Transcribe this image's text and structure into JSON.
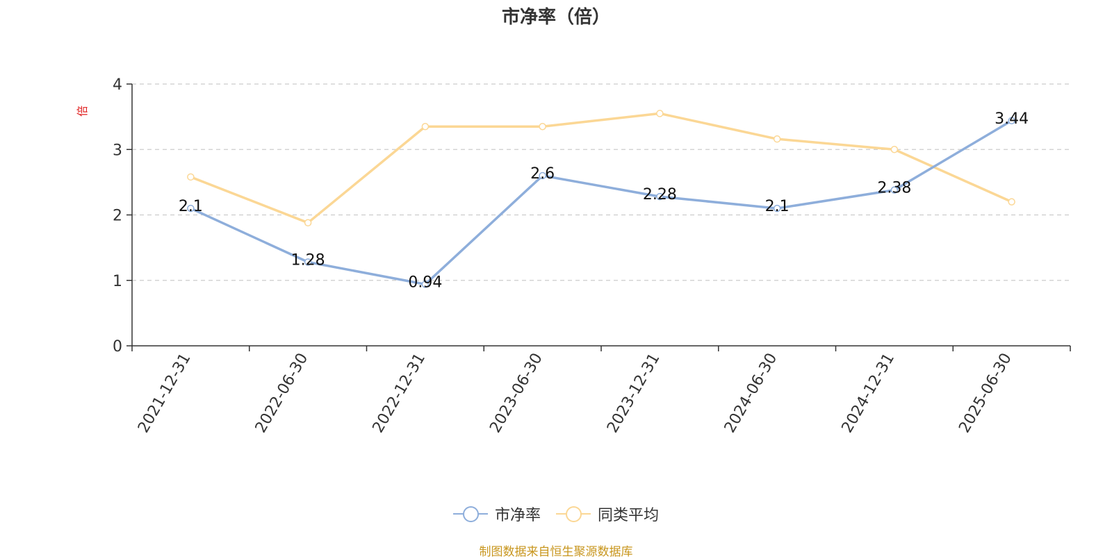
{
  "chart_data": {
    "type": "line",
    "title": "市净率（倍）",
    "ylabel": "倍",
    "categories": [
      "2021-12-31",
      "2022-06-30",
      "2022-12-31",
      "2023-06-30",
      "2023-12-31",
      "2024-06-30",
      "2024-12-31",
      "2025-06-30"
    ],
    "ylim": [
      0,
      4
    ],
    "yticks": [
      "0",
      "1",
      "2",
      "3",
      "4"
    ],
    "grid": true,
    "legend_position": "bottom",
    "series": [
      {
        "name": "市净率",
        "values": [
          2.1,
          1.28,
          0.94,
          2.6,
          2.28,
          2.1,
          2.38,
          3.44
        ],
        "labels": [
          "2.1",
          "1.28",
          "0.94",
          "2.6",
          "2.28",
          "2.1",
          "2.38",
          "3.44"
        ],
        "color": "#8eaedb"
      },
      {
        "name": "同类平均",
        "values": [
          2.58,
          1.88,
          3.35,
          3.35,
          3.55,
          3.16,
          3.0,
          2.2
        ],
        "color": "#fbd795"
      }
    ],
    "source": "制图数据来自恒生聚源数据库"
  },
  "colors": {
    "ylabel": "#e02020",
    "axis": "#333333",
    "grid": "#cccccc",
    "source": "#c8961e"
  }
}
